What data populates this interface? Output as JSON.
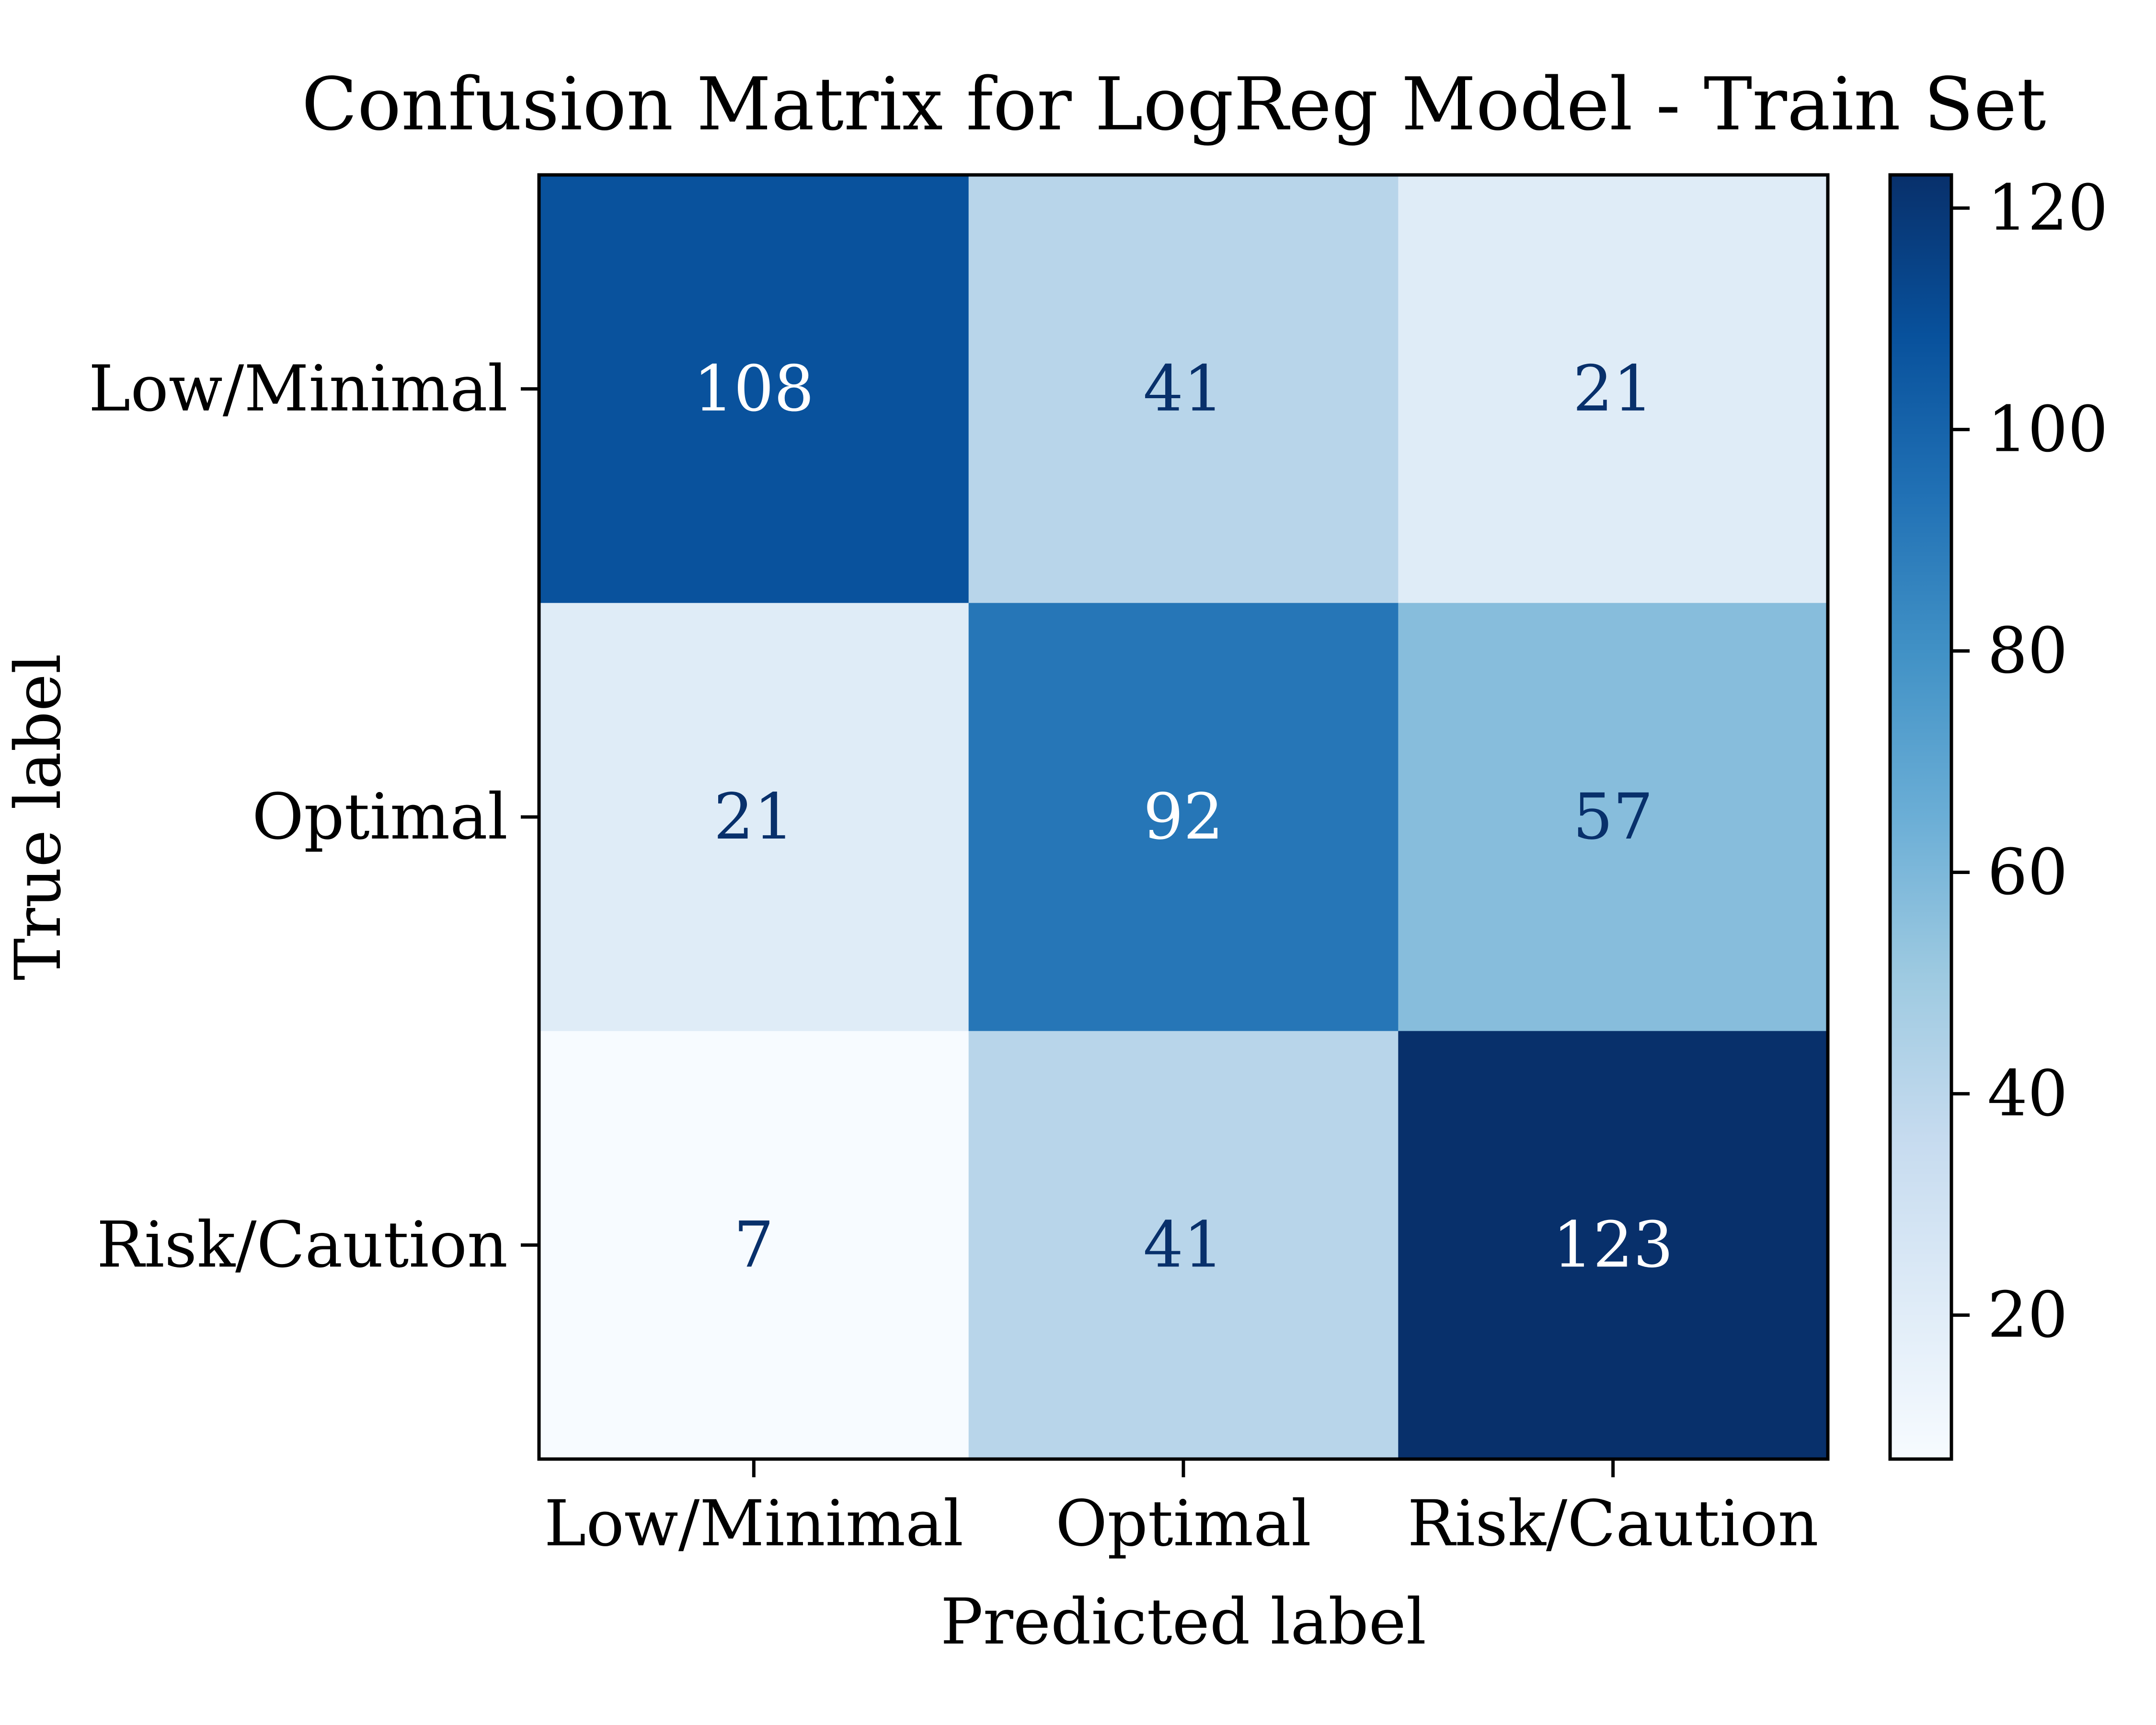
{
  "chart_data": {
    "type": "heatmap",
    "title": "Confusion Matrix for LogReg Model - Train Set",
    "xlabel": "Predicted label",
    "ylabel": "True label",
    "x_categories": [
      "Low/Minimal",
      "Optimal",
      "Risk/Caution"
    ],
    "y_categories": [
      "Low/Minimal",
      "Optimal",
      "Risk/Caution"
    ],
    "values": [
      [
        108,
        41,
        21
      ],
      [
        21,
        92,
        57
      ],
      [
        7,
        41,
        123
      ]
    ],
    "colormap": "Blues",
    "color_range": [
      7,
      123
    ],
    "colorbar_ticks": [
      20,
      40,
      60,
      80,
      100,
      120
    ],
    "colorbar_tick_labels": [
      "20",
      "40",
      "60",
      "80",
      "100",
      "120"
    ],
    "colors": {
      "text_dark": "#08306b",
      "text_light": "#ffffff",
      "axis": "#000000"
    }
  }
}
